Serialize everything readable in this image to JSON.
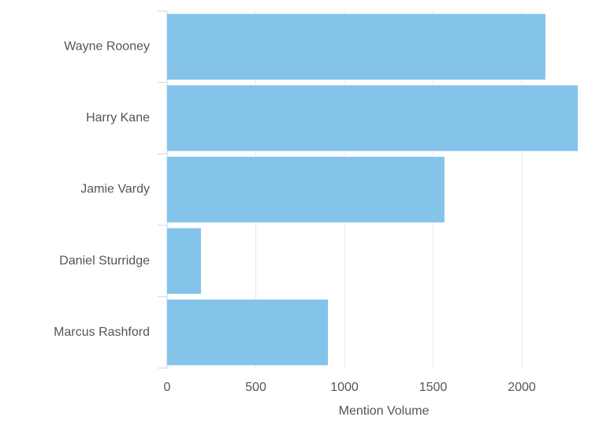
{
  "chart_data": {
    "type": "hbar",
    "categories": [
      "Wayne Rooney",
      "Harry Kane",
      "Jamie Vardy",
      "Daniel Sturridge",
      "Marcus Rashford"
    ],
    "values": [
      2133,
      2316,
      1564,
      191,
      907
    ],
    "color": "#85c4ea",
    "x_label": "Mention Volume",
    "xlim": [
      0,
      2320
    ],
    "xticks": [
      0,
      500,
      1000,
      1500,
      2000
    ],
    "grid": true
  }
}
